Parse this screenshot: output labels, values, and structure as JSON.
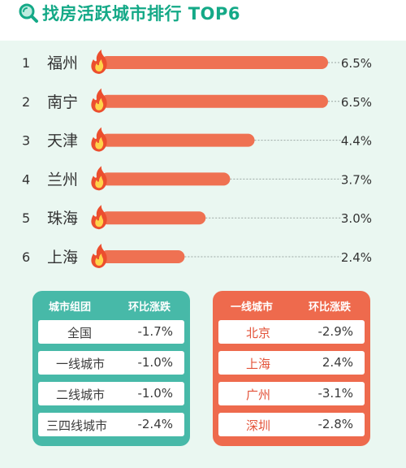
{
  "title": "找房活跃城市排行 TOP6",
  "colors": {
    "accent": "#14a987",
    "bar": "#ef7152",
    "teal_panel": "#47b9a8",
    "orange_panel": "#ee6a4d"
  },
  "chart_data": {
    "type": "bar",
    "title": "找房活跃城市排行 TOP6",
    "ranks": [
      "1",
      "2",
      "3",
      "4",
      "5",
      "6"
    ],
    "categories": [
      "福州",
      "南宁",
      "天津",
      "兰州",
      "珠海",
      "上海"
    ],
    "values": [
      6.5,
      6.5,
      4.4,
      3.7,
      3.0,
      2.4
    ],
    "value_labels": [
      "6.5%",
      "6.5%",
      "4.4%",
      "3.7%",
      "3.0%",
      "2.4%"
    ],
    "icon": "flame-icon",
    "orientation": "horizontal"
  },
  "tables": {
    "group": {
      "headers": [
        "城市组团",
        "环比涨跌"
      ],
      "rows": [
        {
          "name": "全国",
          "value": "-1.7%"
        },
        {
          "name": "一线城市",
          "value": "-1.0%"
        },
        {
          "name": "二线城市",
          "value": "-1.0%"
        },
        {
          "name": "三四线城市",
          "value": "-2.4%"
        }
      ]
    },
    "tier1": {
      "headers": [
        "一线城市",
        "环比涨跌"
      ],
      "rows": [
        {
          "name": "北京",
          "value": "-2.9%"
        },
        {
          "name": "上海",
          "value": "2.4%"
        },
        {
          "name": "广州",
          "value": "-3.1%"
        },
        {
          "name": "深圳",
          "value": "-2.8%"
        }
      ]
    }
  }
}
